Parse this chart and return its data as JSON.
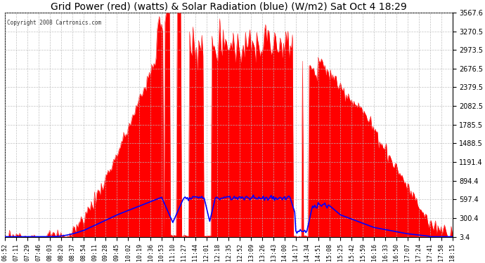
{
  "title": "Grid Power (red) (watts) & Solar Radiation (blue) (W/m2) Sat Oct 4 18:29",
  "copyright": "Copyright 2008 Cartronics.com",
  "yticks": [
    3.4,
    300.4,
    597.4,
    894.4,
    1191.4,
    1488.5,
    1785.5,
    2082.5,
    2379.5,
    2676.5,
    2973.5,
    3270.5,
    3567.6
  ],
  "ylim": [
    3.4,
    3567.6
  ],
  "bg_color": "#ffffff",
  "grid_color": "#bbbbbb",
  "fill_color": "#ff0000",
  "line_color": "#0000ff",
  "title_fontsize": 10,
  "xtick_fontsize": 6,
  "ytick_fontsize": 7
}
